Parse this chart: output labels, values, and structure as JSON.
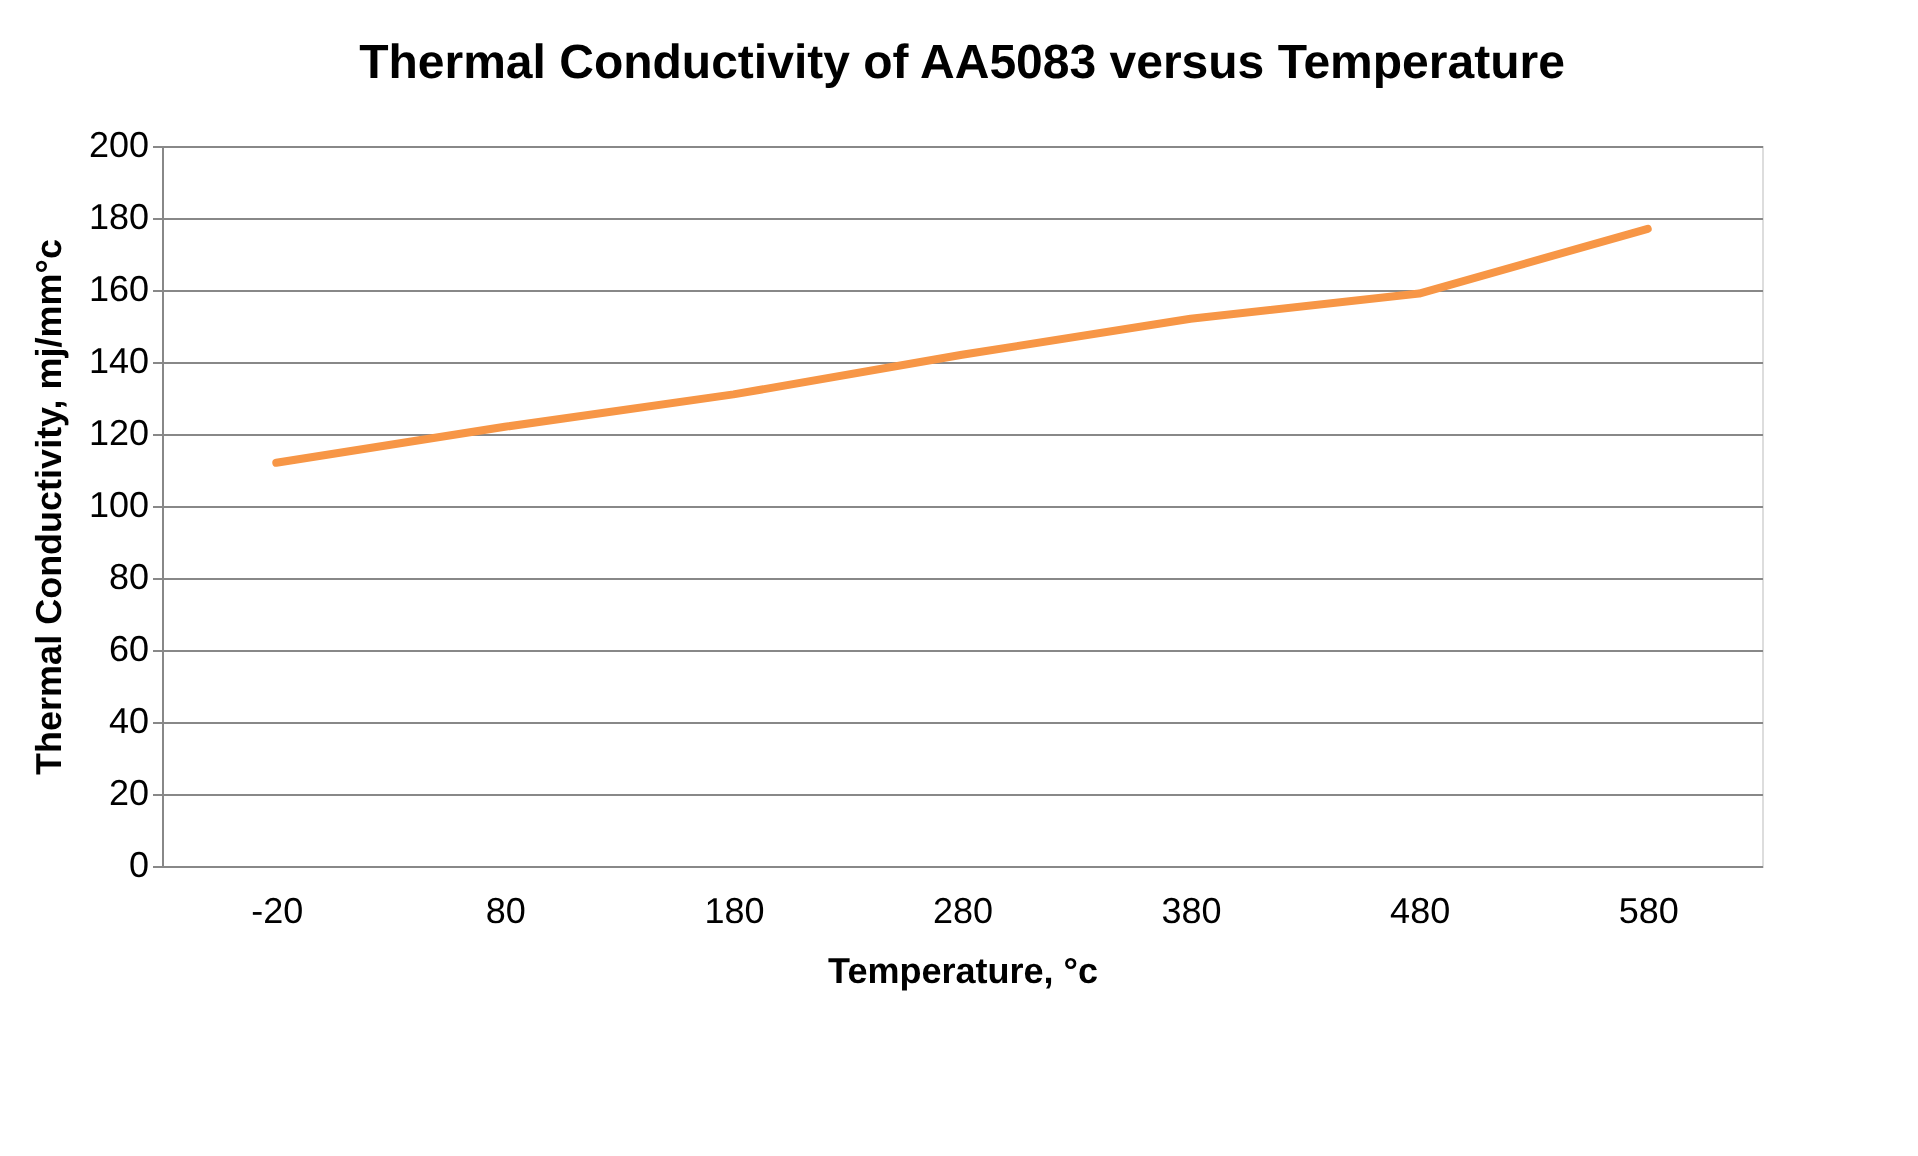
{
  "chart_data": {
    "type": "line",
    "title": "Thermal Conductivity of AA5083 versus Temperature",
    "xlabel": "Temperature, °c",
    "ylabel": "Thermal Conductivity, mj/mm°c",
    "categories": [
      "-20",
      "80",
      "180",
      "280",
      "380",
      "480",
      "580"
    ],
    "series": [
      {
        "color": "#f79646",
        "values": [
          112,
          122,
          131,
          142,
          152,
          159,
          177
        ]
      }
    ],
    "ylim": [
      0,
      200
    ],
    "yticks": [
      0,
      20,
      40,
      60,
      80,
      100,
      120,
      140,
      160,
      180,
      200
    ],
    "grid": "y",
    "marker": "none",
    "line_style": "solid"
  }
}
